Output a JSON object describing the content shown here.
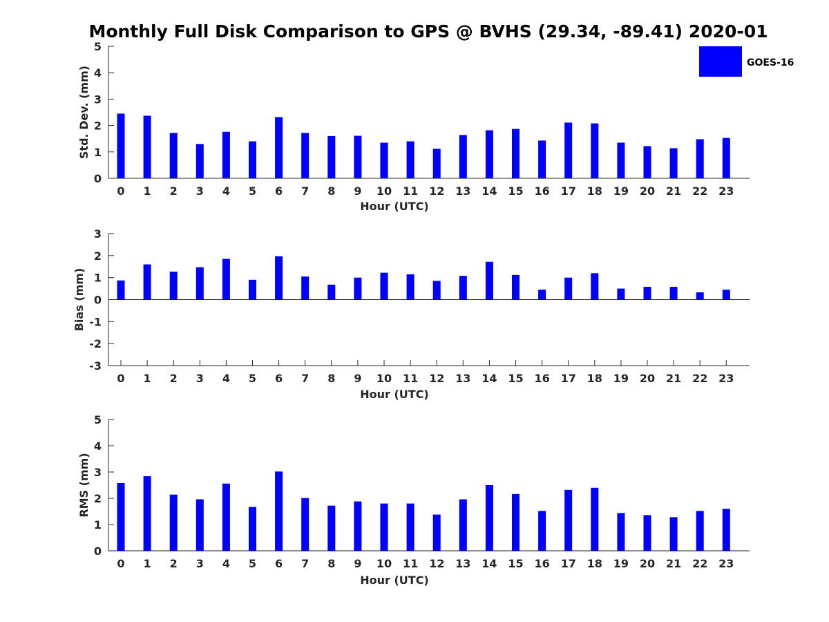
{
  "figure": {
    "title": "Monthly Full Disk Comparison to GPS @ BVHS (29.34, -89.41) 2020-01"
  },
  "legend": {
    "label": "GOES-16",
    "color": "#0000ff",
    "position": "top-right"
  },
  "chart_data": [
    {
      "type": "bar",
      "name": "std_dev",
      "ylabel": "Std. Dev. (mm)",
      "xlabel": "Hour (UTC)",
      "categories": [
        "0",
        "1",
        "2",
        "3",
        "4",
        "5",
        "6",
        "7",
        "8",
        "9",
        "10",
        "11",
        "12",
        "13",
        "14",
        "15",
        "16",
        "17",
        "18",
        "19",
        "20",
        "21",
        "22",
        "23"
      ],
      "ylim": [
        0,
        5
      ],
      "yticks": [
        "0",
        "1",
        "2",
        "3",
        "4",
        "5"
      ],
      "grid": false,
      "series": [
        {
          "name": "GOES-16",
          "color": "#0000ff",
          "values": [
            2.45,
            2.37,
            1.72,
            1.3,
            1.76,
            1.4,
            2.32,
            1.72,
            1.6,
            1.61,
            1.35,
            1.4,
            1.12,
            1.64,
            1.82,
            1.87,
            1.43,
            2.11,
            2.08,
            1.35,
            1.22,
            1.14,
            1.48,
            1.53
          ]
        }
      ]
    },
    {
      "type": "bar",
      "name": "bias",
      "ylabel": "Bias (mm)",
      "xlabel": "Hour (UTC)",
      "categories": [
        "0",
        "1",
        "2",
        "3",
        "4",
        "5",
        "6",
        "7",
        "8",
        "9",
        "10",
        "11",
        "12",
        "13",
        "14",
        "15",
        "16",
        "17",
        "18",
        "19",
        "20",
        "21",
        "22",
        "23"
      ],
      "ylim": [
        -3,
        3
      ],
      "yticks": [
        "-3",
        "-2",
        "-1",
        "0",
        "1",
        "2",
        "3"
      ],
      "grid": false,
      "series": [
        {
          "name": "GOES-16",
          "color": "#0000ff",
          "values": [
            0.87,
            1.6,
            1.27,
            1.47,
            1.85,
            0.9,
            1.97,
            1.05,
            0.68,
            1.0,
            1.22,
            1.15,
            0.85,
            1.08,
            1.72,
            1.12,
            0.45,
            1.0,
            1.2,
            0.5,
            0.58,
            0.58,
            0.33,
            0.45
          ]
        }
      ]
    },
    {
      "type": "bar",
      "name": "rms",
      "ylabel": "RMS (mm)",
      "xlabel": "Hour (UTC)",
      "categories": [
        "0",
        "1",
        "2",
        "3",
        "4",
        "5",
        "6",
        "7",
        "8",
        "9",
        "10",
        "11",
        "12",
        "13",
        "14",
        "15",
        "16",
        "17",
        "18",
        "19",
        "20",
        "21",
        "22",
        "23"
      ],
      "ylim": [
        0,
        5
      ],
      "yticks": [
        "0",
        "1",
        "2",
        "3",
        "4",
        "5"
      ],
      "grid": false,
      "series": [
        {
          "name": "GOES-16",
          "color": "#0000ff",
          "values": [
            2.58,
            2.84,
            2.14,
            1.96,
            2.56,
            1.67,
            3.02,
            2.01,
            1.72,
            1.88,
            1.8,
            1.8,
            1.38,
            1.96,
            2.5,
            2.16,
            1.52,
            2.32,
            2.4,
            1.44,
            1.36,
            1.28,
            1.52,
            1.6
          ]
        }
      ]
    }
  ]
}
